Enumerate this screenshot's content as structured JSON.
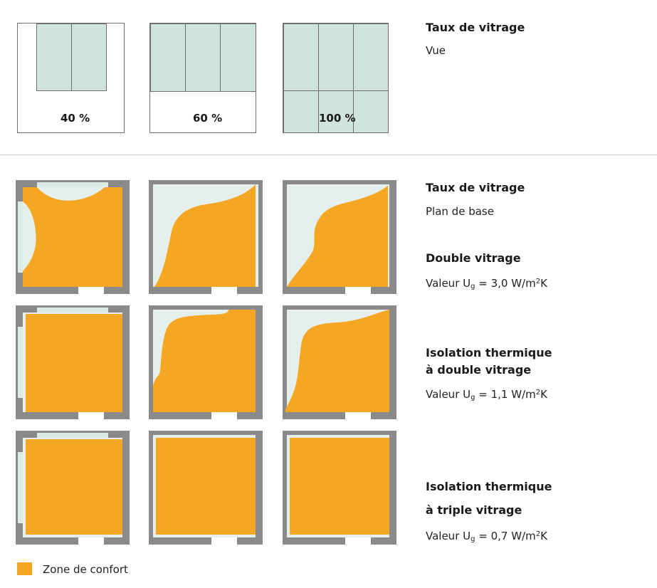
{
  "colors": {
    "comfort_zone": "#f5a623",
    "glazing": "#cfe4dc",
    "wall": "#8a8a8a"
  },
  "facades": [
    {
      "label": "40 %"
    },
    {
      "label": "60 %"
    },
    {
      "label": "100 %"
    }
  ],
  "view_section": {
    "title": "Taux de vitrage",
    "subtitle": "Vue"
  },
  "plan_section": {
    "title": "Taux de vitrage",
    "subtitle": "Plan de base"
  },
  "rows": [
    {
      "title_line1": "Double vitrage",
      "title_line2": "",
      "u_prefix": "Valeur U",
      "u_sub": "g",
      "u_value": " = 3,0 W/m",
      "u_sup": "2",
      "u_unit": "K"
    },
    {
      "title_line1": "Isolation thermique",
      "title_line2": "à double vitrage",
      "u_prefix": "Valeur U",
      "u_sub": "g",
      "u_value": " = 1,1 W/m",
      "u_sup": "2",
      "u_unit": "K"
    },
    {
      "title_line1": "Isolation thermique",
      "title_line2": "à triple vitrage",
      "u_prefix": "Valeur U",
      "u_sub": "g",
      "u_value": " = 0,7 W/m",
      "u_sup": "2",
      "u_unit": "K"
    }
  ],
  "legend": {
    "label": "Zone de confort"
  }
}
